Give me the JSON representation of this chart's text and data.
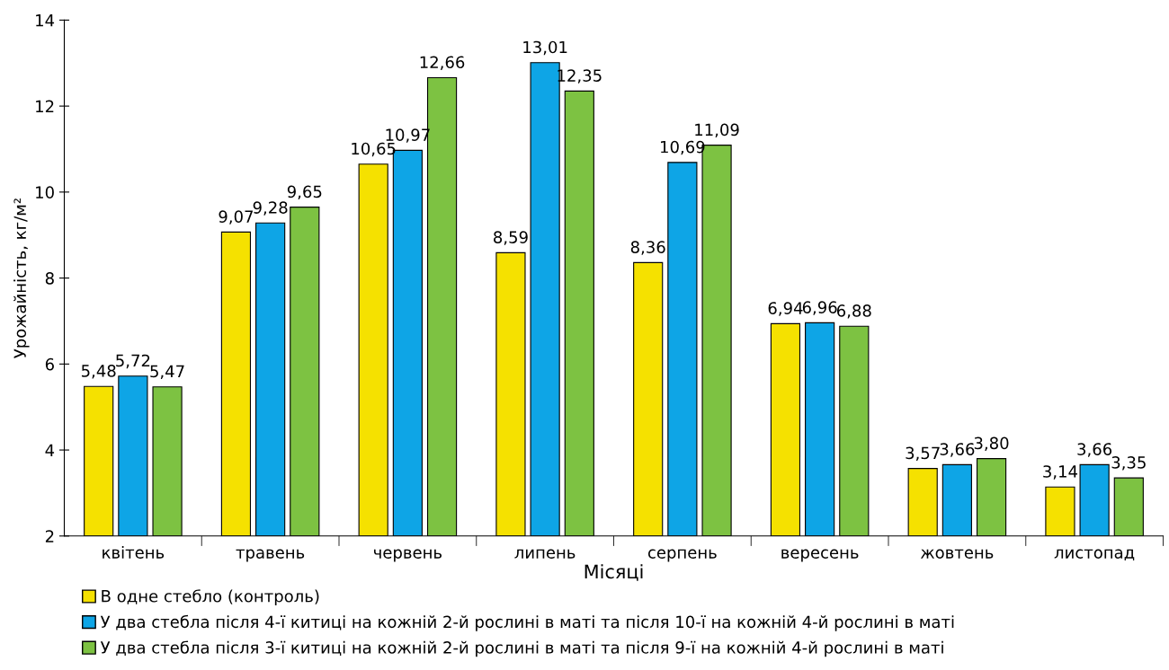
{
  "chart_data": {
    "type": "bar",
    "xlabel": "Місяці",
    "ylabel": "Урожайність, кг/м²",
    "categories": [
      "квітень",
      "травень",
      "червень",
      "липень",
      "серпень",
      "вересень",
      "жовтень",
      "листопад"
    ],
    "series": [
      {
        "name": "В одне стебло (контроль)",
        "color": "#f5e100",
        "values": [
          5.48,
          9.07,
          10.65,
          8.59,
          8.36,
          6.94,
          3.57,
          3.14
        ],
        "value_labels": [
          "5,48",
          "9,07",
          "10,65",
          "8,59",
          "8,36",
          "6,94",
          "3,57",
          "3,14"
        ]
      },
      {
        "name": "У два стебла після 4-ї китиці на кожній 2-й рослині в маті та після 10-ї на кожній 4-й рослині в маті",
        "color": "#0ea5e6",
        "values": [
          5.72,
          9.28,
          10.97,
          13.01,
          10.69,
          6.96,
          3.66,
          3.66
        ],
        "value_labels": [
          "5,72",
          "9,28",
          "10,97",
          "13,01",
          "10,69",
          "6,96",
          "3,66",
          "3,66"
        ]
      },
      {
        "name": "У два стебла після 3-ї китиці на кожній 2-й рослині в маті та після 9-ї на кожній 4-й рослині в маті",
        "color": "#7dc242",
        "values": [
          5.47,
          9.65,
          12.66,
          12.35,
          11.09,
          6.88,
          3.8,
          3.35
        ],
        "value_labels": [
          "5,47",
          "9,65",
          "12,66",
          "12,35",
          "11,09",
          "6,88",
          "3,80",
          "3,35"
        ]
      }
    ],
    "ylim": [
      2,
      14
    ],
    "yticks": [
      2,
      4,
      6,
      8,
      10,
      12,
      14
    ],
    "grid": false,
    "legend": "bottom"
  }
}
